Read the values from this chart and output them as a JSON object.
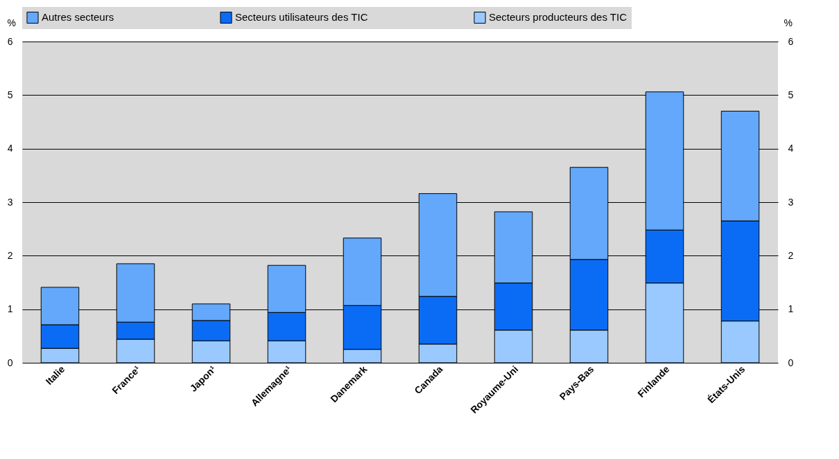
{
  "chart_data": {
    "type": "bar",
    "stacked": true,
    "ylabel": "%",
    "y2label": "%",
    "categories": [
      "Italie",
      "France¹",
      "Japon¹",
      "Allemagne¹",
      "Danemark",
      "Canada",
      "Royaume-Uni",
      "Pays-Bas",
      "Finlande",
      "États-Unis"
    ],
    "series": [
      {
        "name": "Secteurs producteurs des TIC",
        "color": "#99c9ff",
        "values": [
          0.27,
          0.44,
          0.41,
          0.41,
          0.25,
          0.35,
          0.61,
          0.61,
          1.49,
          0.78
        ]
      },
      {
        "name": "Secteurs utilisateurs des TIC",
        "color": "#0a6cf5",
        "values": [
          0.44,
          0.32,
          0.38,
          0.53,
          0.82,
          0.89,
          0.88,
          1.32,
          0.99,
          1.87
        ]
      },
      {
        "name": "Autres secteurs",
        "color": "#63a8fb",
        "values": [
          0.7,
          1.09,
          0.31,
          0.88,
          1.26,
          1.92,
          1.33,
          1.72,
          2.58,
          2.05
        ]
      }
    ],
    "ylim": [
      0,
      6
    ],
    "yticks": [
      0,
      1,
      2,
      3,
      4,
      5,
      6
    ],
    "y2lim": [
      0,
      6
    ],
    "y2ticks": [
      0,
      1,
      2,
      3,
      4,
      5,
      6
    ],
    "grid": "y",
    "legend": "top"
  }
}
